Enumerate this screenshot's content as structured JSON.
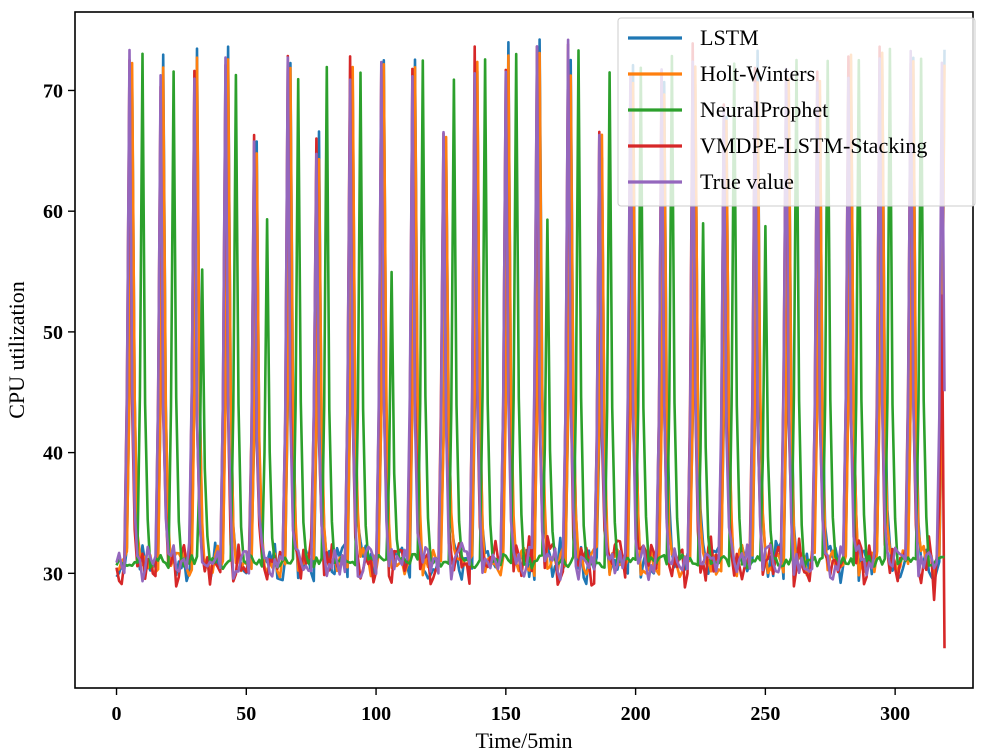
{
  "chart_data": {
    "type": "line",
    "title": "",
    "xlabel": "Time/5min",
    "ylabel": "CPU utilization",
    "xlim": [
      -16,
      330
    ],
    "ylim": [
      20.5,
      76.5
    ],
    "xticks": [
      0,
      50,
      100,
      150,
      200,
      250,
      300
    ],
    "yticks": [
      30,
      40,
      50,
      60,
      70
    ],
    "legend_position": "top-right",
    "baseline": 31,
    "true_spikes": [
      [
        5,
        72.8
      ],
      [
        17,
        72.0
      ],
      [
        30,
        72.3
      ],
      [
        42,
        72.7
      ],
      [
        53,
        65.0
      ],
      [
        66,
        72.3
      ],
      [
        77,
        65.5
      ],
      [
        90,
        71.5
      ],
      [
        102,
        72.0
      ],
      [
        114,
        71.4
      ],
      [
        126,
        65.8
      ],
      [
        138,
        72.0
      ],
      [
        150,
        72.9
      ],
      [
        162,
        72.6
      ],
      [
        174,
        72.6
      ],
      [
        186,
        65.5
      ],
      [
        198,
        71.0
      ],
      [
        210,
        70.5
      ],
      [
        222,
        71.8
      ],
      [
        234,
        68.0
      ],
      [
        246,
        71.5
      ],
      [
        258,
        71.0
      ],
      [
        270,
        70.5
      ],
      [
        282,
        72.0
      ],
      [
        294,
        73.0
      ],
      [
        306,
        72.2
      ],
      [
        318,
        72.5
      ]
    ],
    "prophet_spikes": [
      [
        10,
        72.8
      ],
      [
        22,
        71.8
      ],
      [
        33,
        55.0
      ],
      [
        46,
        71.0
      ],
      [
        58,
        59.3
      ],
      [
        70,
        70.8
      ],
      [
        81,
        72.0
      ],
      [
        94,
        71.5
      ],
      [
        106,
        54.5
      ],
      [
        118,
        72.8
      ],
      [
        130,
        71.1
      ],
      [
        142,
        72.8
      ],
      [
        154,
        73.5
      ],
      [
        166,
        59.8
      ],
      [
        178,
        72.8
      ],
      [
        190,
        71.0
      ],
      [
        202,
        72.0
      ],
      [
        214,
        73.0
      ],
      [
        226,
        59.2
      ],
      [
        238,
        72.0
      ],
      [
        250,
        58.5
      ],
      [
        262,
        72.8
      ],
      [
        274,
        72.3
      ],
      [
        286,
        72.5
      ],
      [
        298,
        73.2
      ],
      [
        310,
        72.8
      ]
    ],
    "series": [
      {
        "name": "LSTM",
        "color": "#1f77b4",
        "lag": 1,
        "noise": 1.4,
        "seed": 11
      },
      {
        "name": "Holt-Winters",
        "color": "#ff7f0e",
        "lag": 1,
        "noise": 1.0,
        "seed": 23
      },
      {
        "name": "NeuralProphet",
        "color": "#2ca02c",
        "lag": 0,
        "noise": 0.45,
        "seed": 37
      },
      {
        "name": "VMDPE-LSTM-Stacking",
        "color": "#d62728",
        "lag": 0,
        "noise": 1.6,
        "seed": 53
      },
      {
        "name": "True value",
        "color": "#9467bd",
        "lag": 0,
        "noise": 1.2,
        "seed": 71
      }
    ]
  }
}
